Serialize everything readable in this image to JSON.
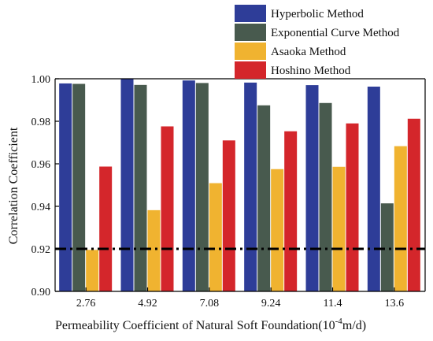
{
  "chart_data": {
    "type": "bar",
    "xlabel": "Permeability Coefficient of Natural Soft  Foundation(10",
    "xlabel_sup": "-4",
    "xlabel_unit": "m/d)",
    "ylabel": "Correlation Coefficient",
    "categories": [
      "2.76",
      "4.92",
      "7.08",
      "9.24",
      "11.4",
      "13.6"
    ],
    "ylim": [
      0.9,
      1.0
    ],
    "yticks": [
      "0.90",
      "0.92",
      "0.94",
      "0.96",
      "0.98",
      "1.00"
    ],
    "series": [
      {
        "name": "Hyperbolic Method",
        "color": "#2e3d98",
        "values": [
          0.9978,
          1.0,
          0.9992,
          0.9982,
          0.997,
          0.9963
        ]
      },
      {
        "name": "Exponential Curve Method",
        "color": "#485a4e",
        "values": [
          0.9976,
          0.9971,
          0.998,
          0.9875,
          0.9886,
          0.9414
        ]
      },
      {
        "name": "Asaoka Method",
        "color": "#f0b330",
        "values": [
          0.9195,
          0.9382,
          0.9509,
          0.9575,
          0.9586,
          0.9683
        ]
      },
      {
        "name": "Hoshino Method",
        "color": "#d4262b",
        "values": [
          0.9587,
          0.9776,
          0.971,
          0.9753,
          0.979,
          0.9812
        ]
      }
    ],
    "reference_line": {
      "value": 0.92,
      "style": "dash-dot",
      "color": "#000000"
    },
    "legend": "top-right",
    "grid": false
  }
}
